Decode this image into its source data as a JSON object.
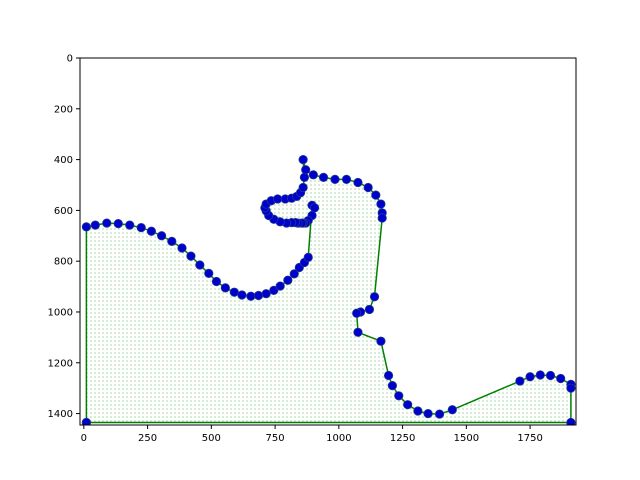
{
  "chart_data": {
    "type": "line",
    "title": "",
    "xlabel": "",
    "ylabel": "",
    "xlim": [
      -15,
      1930
    ],
    "ylim": [
      1445,
      0
    ],
    "y_inverted": true,
    "grid": false,
    "legend": "none",
    "x_ticks": [
      0,
      250,
      500,
      750,
      1000,
      1250,
      1500,
      1750
    ],
    "y_ticks": [
      0,
      200,
      400,
      600,
      800,
      1000,
      1200,
      1400
    ],
    "x_tick_labels": [
      "0",
      "250",
      "500",
      "750",
      "1000",
      "1250",
      "1500",
      "1750"
    ],
    "y_tick_labels": [
      "0",
      "200",
      "400",
      "600",
      "800",
      "1000",
      "1200",
      "1400"
    ],
    "colors": {
      "outline": "#008000",
      "marker": "#0000cc",
      "marker_edge": "#1f3a8a",
      "fill_dots": "#2ca02c"
    },
    "series": [
      {
        "kind": "polygon-outline-with-markers",
        "x": [
          10,
          10,
          45,
          90,
          135,
          180,
          225,
          265,
          305,
          345,
          385,
          420,
          455,
          490,
          520,
          555,
          590,
          620,
          655,
          685,
          715,
          745,
          770,
          800,
          825,
          845,
          865,
          880,
          895,
          905,
          895,
          880,
          870,
          860,
          855,
          840,
          830,
          815,
          795,
          770,
          745,
          725,
          715,
          710,
          715,
          735,
          760,
          790,
          815,
          835,
          850,
          860,
          865,
          860,
          870,
          900,
          940,
          985,
          1030,
          1075,
          1115,
          1145,
          1165,
          1170,
          1170,
          1140,
          1120,
          1085,
          1070,
          1075,
          1165,
          1195,
          1210,
          1235,
          1270,
          1310,
          1350,
          1395,
          1445,
          1710,
          1750,
          1790,
          1830,
          1870,
          1910,
          1910,
          1910,
          10
        ],
        "y": [
          1435,
          665,
          658,
          650,
          652,
          658,
          668,
          682,
          700,
          722,
          748,
          780,
          815,
          848,
          880,
          905,
          922,
          933,
          938,
          935,
          928,
          915,
          898,
          875,
          850,
          825,
          805,
          785,
          580,
          590,
          620,
          640,
          650,
          650,
          650,
          650,
          648,
          648,
          650,
          645,
          635,
          620,
          602,
          590,
          575,
          562,
          555,
          555,
          552,
          545,
          530,
          510,
          470,
          400,
          440,
          460,
          470,
          478,
          478,
          490,
          510,
          540,
          575,
          610,
          630,
          940,
          990,
          1000,
          1005,
          1080,
          1115,
          1250,
          1290,
          1330,
          1365,
          1390,
          1400,
          1402,
          1385,
          1272,
          1255,
          1248,
          1250,
          1262,
          1285,
          1300,
          1435,
          1435
        ]
      }
    ]
  }
}
